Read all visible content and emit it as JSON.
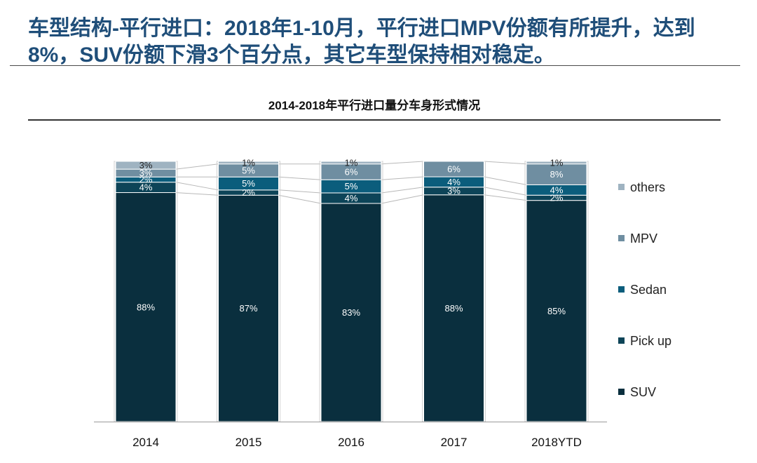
{
  "slide": {
    "title": "车型结构-平行进口：2018年1-10月，平行进口MPV份额有所提升，达到8%，SUV份额下滑3个百分点，其它车型保持相对稳定。"
  },
  "chart_data": {
    "type": "bar",
    "stacked": true,
    "stack_type": "percent",
    "title": "2014-2018年平行进口量分车身形式情况",
    "categories": [
      "2014",
      "2015",
      "2016",
      "2017",
      "2018YTD"
    ],
    "series": [
      {
        "name": "SUV",
        "color": "#0a2f3e",
        "values": [
          88,
          87,
          83,
          88,
          85
        ],
        "labels": [
          "88%",
          "87%",
          "83%",
          "88%",
          "85%"
        ]
      },
      {
        "name": "Pick up",
        "color": "#0d4458",
        "values": [
          4,
          2,
          4,
          3,
          2
        ],
        "labels": [
          "4%",
          "2%",
          "4%",
          "3%",
          "2%"
        ]
      },
      {
        "name": "Sedan",
        "color": "#0b5d7c",
        "values": [
          2,
          5,
          5,
          4,
          4
        ],
        "labels": [
          "2%",
          "5%",
          "5%",
          "4%",
          "4%"
        ]
      },
      {
        "name": "MPV",
        "color": "#6f8ea1",
        "values": [
          3,
          5,
          6,
          6,
          8
        ],
        "labels": [
          "3%",
          "5%",
          "6%",
          "6%",
          "8%"
        ]
      },
      {
        "name": "others",
        "color": "#9fb3c1",
        "values": [
          3,
          1,
          1,
          0,
          1
        ],
        "labels": [
          "3%",
          "1%",
          "1%",
          "",
          "1%"
        ]
      }
    ],
    "ylim": [
      0,
      100
    ],
    "legend_position": "right",
    "connector_lines": true,
    "grid": false
  }
}
